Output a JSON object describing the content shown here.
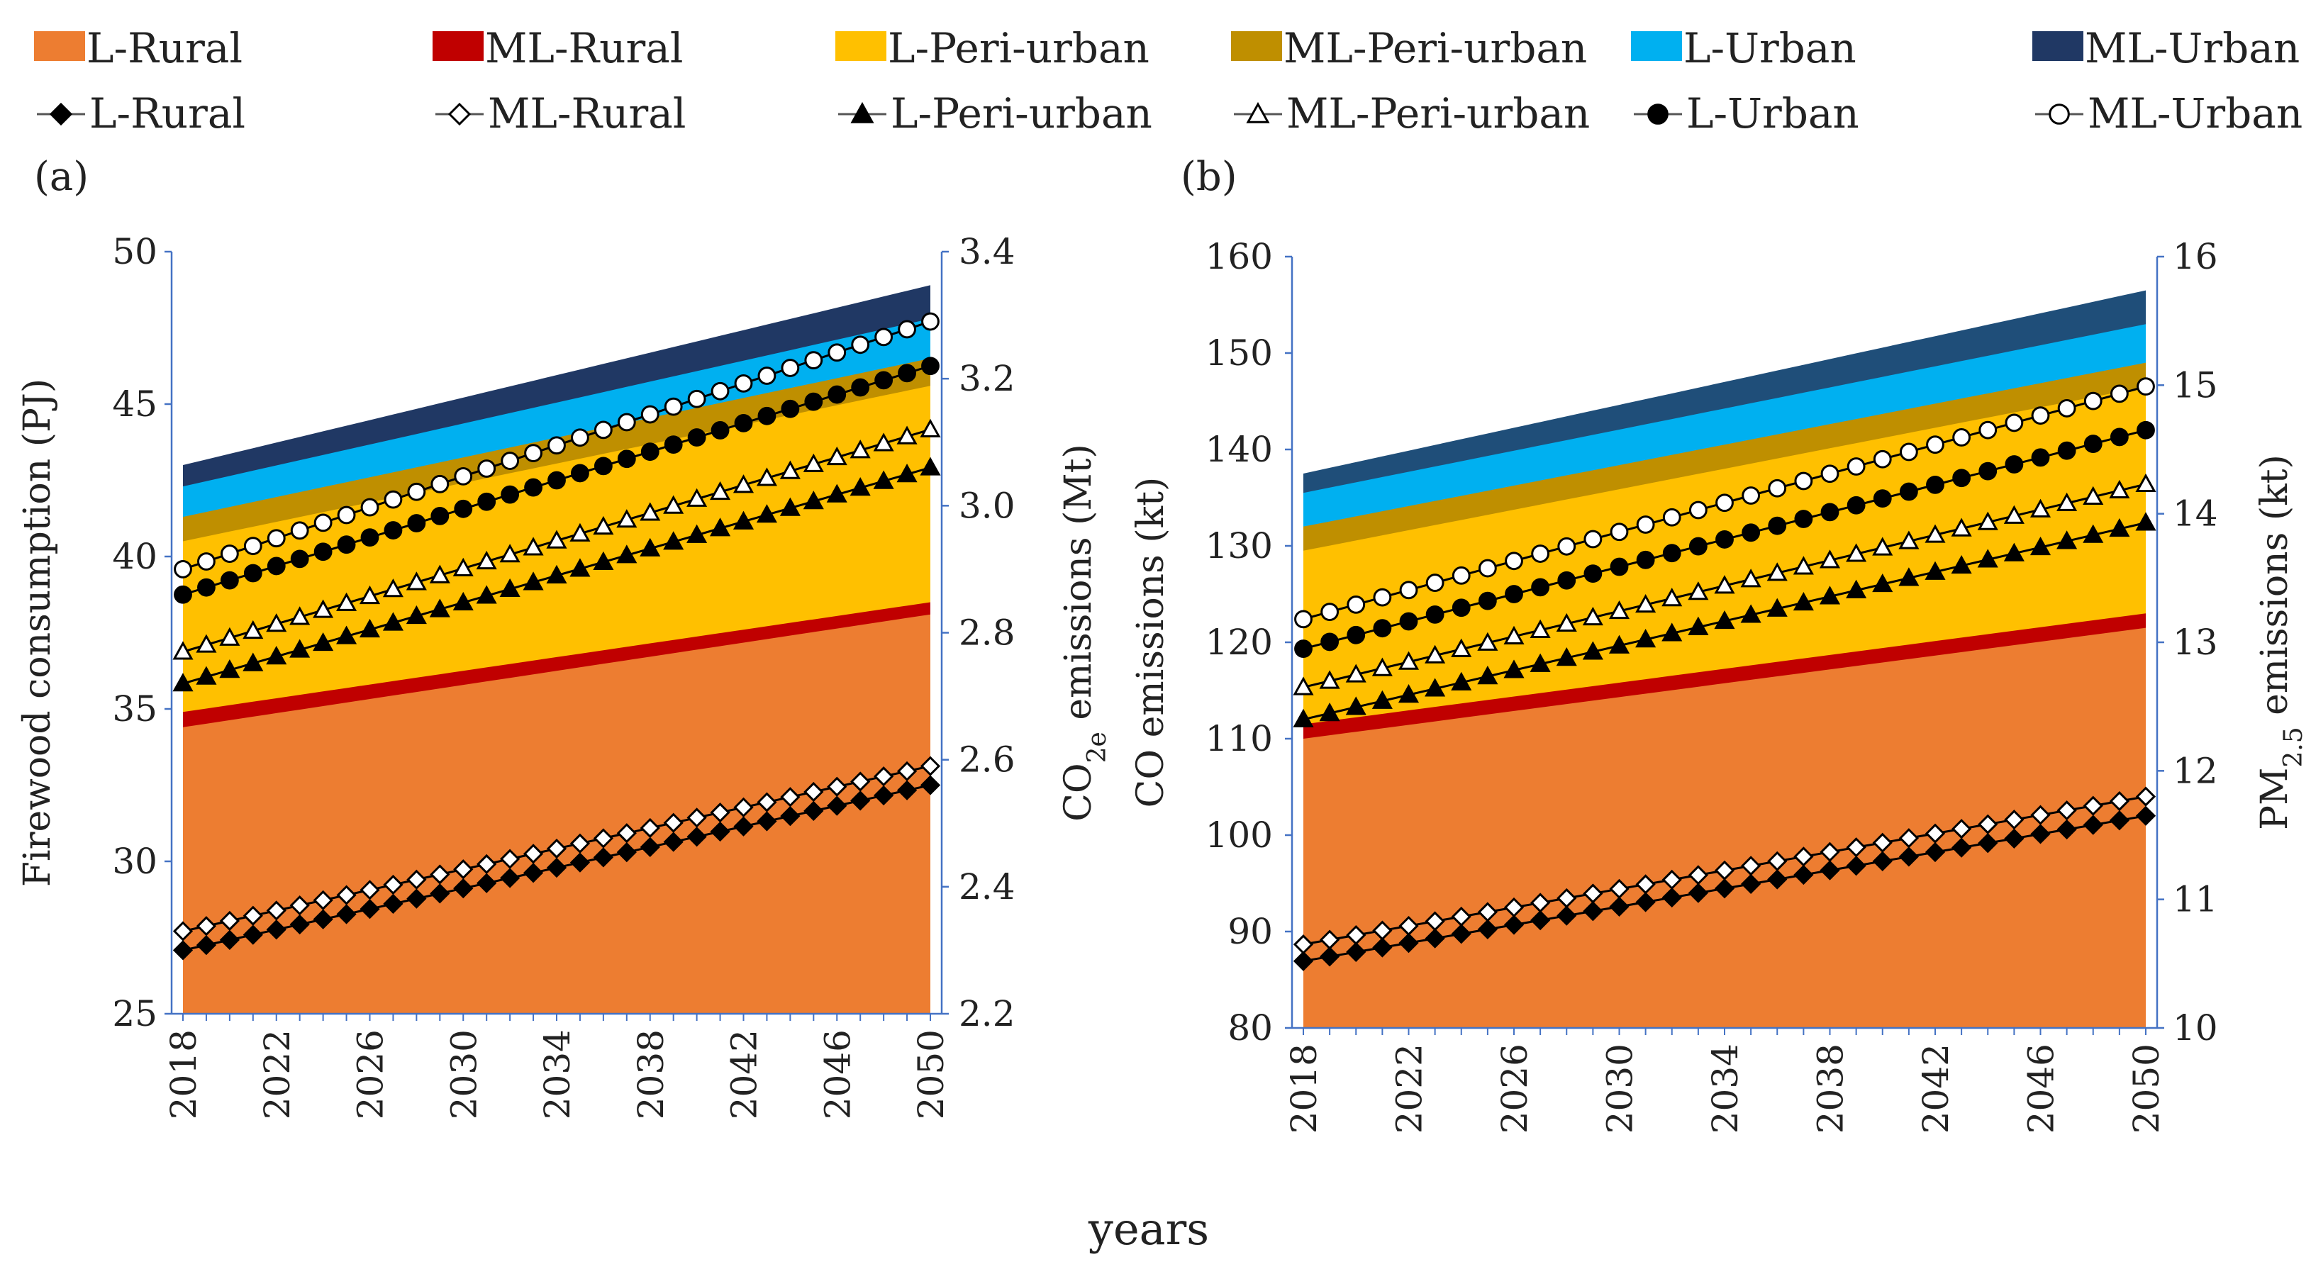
{
  "chart_data": [
    {
      "type": "area+line",
      "panel_label": "(a)",
      "years": [
        2018,
        2019,
        2020,
        2021,
        2022,
        2023,
        2024,
        2025,
        2026,
        2027,
        2028,
        2029,
        2030,
        2031,
        2032,
        2033,
        2034,
        2035,
        2036,
        2037,
        2038,
        2039,
        2040,
        2041,
        2042,
        2043,
        2044,
        2045,
        2046,
        2047,
        2048,
        2049,
        2050
      ],
      "x_ticks": [
        "2018",
        "2022",
        "2026",
        "2030",
        "2034",
        "2038",
        "2042",
        "2046",
        "2050"
      ],
      "xlabel": "years",
      "ylabel_left": "Firewood consumption (PJ)",
      "ylabel_right": {
        "pre": "CO",
        "sub": "2e",
        "post": " emissions (Mt)"
      },
      "ylim_left": [
        25,
        50
      ],
      "ylim_right": [
        2.2,
        3.4
      ],
      "y_ticks_left": [
        "25",
        "30",
        "35",
        "40",
        "45",
        "50"
      ],
      "y_ticks_right": [
        "2.2",
        "2.4",
        "2.6",
        "2.8",
        "3.0",
        "3.2",
        "3.4"
      ],
      "areas": [
        {
          "name": "L-Rural",
          "start": 34.4,
          "end": 38.1
        },
        {
          "name": "ML-Rural",
          "start": 34.9,
          "end": 38.5
        },
        {
          "name": "L-Peri-urban",
          "start": 40.5,
          "end": 45.6
        },
        {
          "name": "ML-Peri-urban",
          "start": 41.3,
          "end": 46.5
        },
        {
          "name": "L-Urban",
          "start": 42.3,
          "end": 47.8
        },
        {
          "name": "ML-Urban",
          "start": 43.0,
          "end": 48.9
        }
      ],
      "lines": [
        {
          "name": "L-Rural",
          "start": 2.3,
          "end": 2.56
        },
        {
          "name": "ML-Rural",
          "start": 2.33,
          "end": 2.59
        },
        {
          "name": "L-Peri-urban",
          "start": 2.72,
          "end": 3.06
        },
        {
          "name": "ML-Peri-urban",
          "start": 2.77,
          "end": 3.12
        },
        {
          "name": "L-Urban",
          "start": 2.86,
          "end": 3.22
        },
        {
          "name": "ML-Urban",
          "start": 2.9,
          "end": 3.29
        }
      ]
    },
    {
      "type": "area+line",
      "panel_label": "(b)",
      "years": [
        2018,
        2019,
        2020,
        2021,
        2022,
        2023,
        2024,
        2025,
        2026,
        2027,
        2028,
        2029,
        2030,
        2031,
        2032,
        2033,
        2034,
        2035,
        2036,
        2037,
        2038,
        2039,
        2040,
        2041,
        2042,
        2043,
        2044,
        2045,
        2046,
        2047,
        2048,
        2049,
        2050
      ],
      "x_ticks": [
        "2018",
        "2022",
        "2026",
        "2030",
        "2034",
        "2038",
        "2042",
        "2046",
        "2050"
      ],
      "xlabel": "years",
      "ylabel_left": "CO emissions (kt)",
      "ylabel_right": {
        "pre": "PM",
        "sub": "2.5",
        "post": " emissions (kt)"
      },
      "ylim_left": [
        80,
        160
      ],
      "ylim_right": [
        10,
        16
      ],
      "y_ticks_left": [
        "80",
        "90",
        "100",
        "110",
        "120",
        "130",
        "140",
        "150",
        "160"
      ],
      "y_ticks_right": [
        "10",
        "11",
        "12",
        "13",
        "14",
        "15",
        "16"
      ],
      "areas": [
        {
          "name": "L-Rural",
          "start": 110.0,
          "end": 121.5
        },
        {
          "name": "ML-Rural",
          "start": 111.5,
          "end": 123.0
        },
        {
          "name": "L-Peri-urban",
          "start": 129.5,
          "end": 146.5
        },
        {
          "name": "ML-Peri-urban",
          "start": 132.0,
          "end": 149.0
        },
        {
          "name": "L-Urban",
          "start": 135.5,
          "end": 153.0
        },
        {
          "name": "ML-Urban",
          "start": 137.5,
          "end": 156.5
        }
      ],
      "lines": [
        {
          "name": "L-Rural",
          "start": 10.52,
          "end": 11.65
        },
        {
          "name": "ML-Rural",
          "start": 10.65,
          "end": 11.8
        },
        {
          "name": "L-Peri-urban",
          "start": 12.4,
          "end": 13.93
        },
        {
          "name": "ML-Peri-urban",
          "start": 12.65,
          "end": 14.23
        },
        {
          "name": "L-Urban",
          "start": 12.95,
          "end": 14.65
        },
        {
          "name": "ML-Urban",
          "start": 13.18,
          "end": 14.99
        }
      ]
    }
  ],
  "legend": {
    "areas": [
      {
        "label": "L-Rural",
        "color": "#ED7D31"
      },
      {
        "label": "ML-Rural",
        "color": "#C00000"
      },
      {
        "label": "L-Peri-urban",
        "color": "#FFC000"
      },
      {
        "label": "ML-Peri-urban",
        "color": "#BF8F00"
      },
      {
        "label": "L-Urban",
        "color": "#00B0F0"
      },
      {
        "label": "ML-Urban",
        "color": "#203864"
      }
    ],
    "lines": [
      {
        "label": "L-Rural",
        "marker": "diamond-filled"
      },
      {
        "label": "ML-Rural",
        "marker": "diamond-open"
      },
      {
        "label": "L-Peri-urban",
        "marker": "triangle-filled"
      },
      {
        "label": "ML-Peri-urban",
        "marker": "triangle-open"
      },
      {
        "label": "L-Urban",
        "marker": "circle-filled"
      },
      {
        "label": "ML-Urban",
        "marker": "circle-open"
      }
    ]
  },
  "colors": {
    "axis": "#4472C4",
    "ml_urban_panel_b": "#1F4E79"
  }
}
